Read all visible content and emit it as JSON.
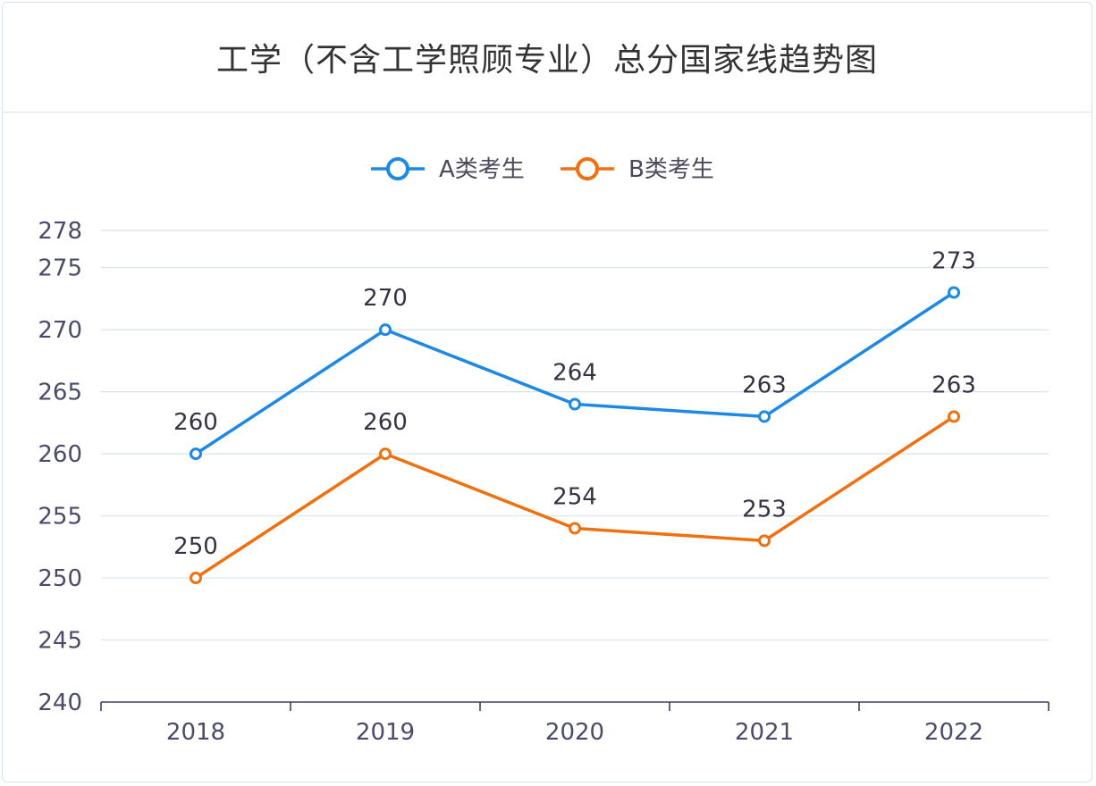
{
  "chart_data": {
    "type": "line",
    "title": "工学（不含工学照顾专业）总分国家线趋势图",
    "categories": [
      "2018",
      "2019",
      "2020",
      "2021",
      "2022"
    ],
    "series": [
      {
        "name": "A类考生",
        "values": [
          260,
          270,
          264,
          263,
          273
        ],
        "color": "#1e88e5"
      },
      {
        "name": "B类考生",
        "values": [
          250,
          260,
          254,
          253,
          263
        ],
        "color": "#f07010"
      }
    ],
    "yticks": [
      240,
      245,
      250,
      255,
      260,
      265,
      270,
      275,
      278
    ],
    "ylim": [
      240,
      278
    ],
    "grid": true,
    "legend_position": "top-center",
    "data_labels": true
  }
}
